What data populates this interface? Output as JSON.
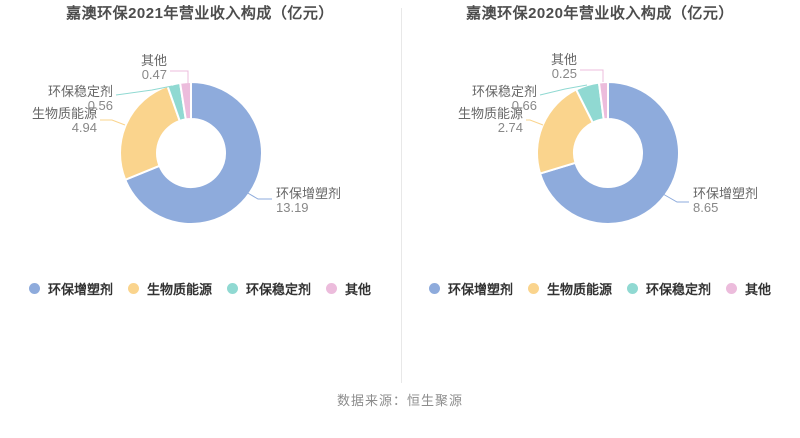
{
  "page": {
    "source_note": "数据来源：恒生聚源"
  },
  "colors": {
    "series": [
      "#8EABDC",
      "#FAD48D",
      "#90D9D2",
      "#ECBCDC"
    ],
    "title_text": "#4d4d4d",
    "label_name": "#666666",
    "label_value": "#888888",
    "legend_text": "#333333",
    "source_text": "#8c8c8c",
    "divider": "#e8e8e8"
  },
  "chart_data": [
    {
      "type": "pie",
      "subtype": "donut",
      "title": "嘉澳环保2021年营业收入构成（亿元）",
      "unit": "亿元",
      "categories": [
        "环保增塑剂",
        "生物质能源",
        "环保稳定剂",
        "其他"
      ],
      "values": [
        13.19,
        4.94,
        0.56,
        0.47
      ],
      "legend": [
        "环保增塑剂",
        "生物质能源",
        "环保稳定剂",
        "其他"
      ],
      "legend_position": "bottom",
      "start_angle_deg": 0,
      "direction": "clockwise"
    },
    {
      "type": "pie",
      "subtype": "donut",
      "title": "嘉澳环保2020年营业收入构成（亿元）",
      "unit": "亿元",
      "categories": [
        "环保增塑剂",
        "生物质能源",
        "环保稳定剂",
        "其他"
      ],
      "values": [
        8.65,
        2.74,
        0.66,
        0.25
      ],
      "legend": [
        "环保增塑剂",
        "生物质能源",
        "环保稳定剂",
        "其他"
      ],
      "legend_position": "bottom",
      "start_angle_deg": 0,
      "direction": "clockwise"
    }
  ]
}
